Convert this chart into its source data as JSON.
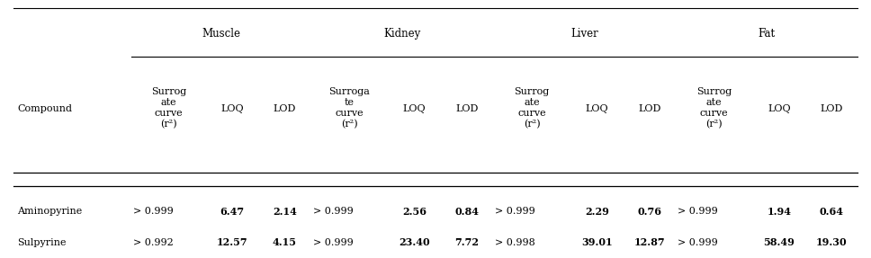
{
  "tissue_groups": [
    {
      "label": "Muscle",
      "cols": [
        1,
        2,
        3
      ]
    },
    {
      "label": "Kidney",
      "cols": [
        4,
        5,
        6
      ]
    },
    {
      "label": "Liver",
      "cols": [
        7,
        8,
        9
      ]
    },
    {
      "label": "Fat",
      "cols": [
        10,
        11,
        12
      ]
    }
  ],
  "subheaders": [
    {
      "text": "Surrog\nate\ncurve\n(r²)",
      "col": 1
    },
    {
      "text": "LOQ",
      "col": 2
    },
    {
      "text": "LOD",
      "col": 3
    },
    {
      "text": "Surroga\nte\ncurve\n(r²)",
      "col": 4
    },
    {
      "text": "LOQ",
      "col": 5
    },
    {
      "text": "LOD",
      "col": 6
    },
    {
      "text": "Surrog\nate\ncurve\n(r²)",
      "col": 7
    },
    {
      "text": "LOQ",
      "col": 8
    },
    {
      "text": "LOD",
      "col": 9
    },
    {
      "text": "Surrog\nate\ncurve\n(r²)",
      "col": 10
    },
    {
      "text": "LOQ",
      "col": 11
    },
    {
      "text": "LOD",
      "col": 12
    }
  ],
  "rows": [
    {
      "compound": "Aminopyrine",
      "values": [
        "> 0.999",
        "6.47",
        "2.14",
        "> 0.999",
        "2.56",
        "0.84",
        "> 0.999",
        "2.29",
        "0.76",
        "> 0.999",
        "1.94",
        "0.64"
      ],
      "bold": [
        false,
        true,
        true,
        false,
        true,
        true,
        false,
        true,
        true,
        false,
        true,
        true
      ]
    },
    {
      "compound": "Sulpyrine",
      "values": [
        "> 0.992",
        "12.57",
        "4.15",
        "> 0.999",
        "23.40",
        "7.72",
        "> 0.998",
        "39.01",
        "12.87",
        "> 0.999",
        "58.49",
        "19.30"
      ],
      "bold": [
        false,
        true,
        true,
        false,
        true,
        true,
        false,
        true,
        true,
        false,
        true,
        true
      ]
    }
  ],
  "col_widths": [
    1.35,
    0.85,
    0.6,
    0.6,
    0.88,
    0.6,
    0.6,
    0.88,
    0.6,
    0.6,
    0.88,
    0.6,
    0.6
  ],
  "background_color": "#ffffff",
  "font_size": 8.0,
  "tissue_font_size": 8.5
}
